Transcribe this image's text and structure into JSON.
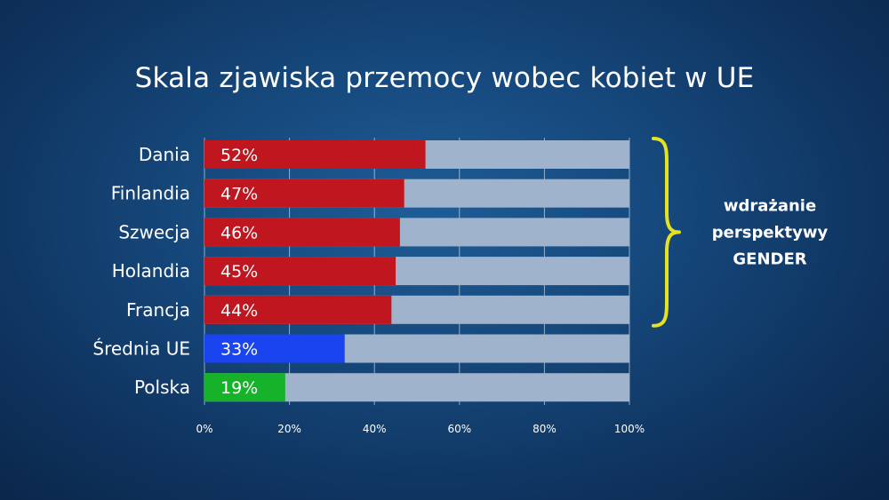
{
  "chart_data": {
    "type": "bar",
    "orientation": "horizontal",
    "title": "Skala zjawiska przemocy wobec kobiet w UE",
    "categories": [
      "Dania",
      "Finlandia",
      "Szwecja",
      "Holandia",
      "Francja",
      "Średnia UE",
      "Polska"
    ],
    "values": [
      52,
      47,
      46,
      45,
      44,
      33,
      19
    ],
    "value_labels": [
      "52%",
      "47%",
      "46%",
      "45%",
      "44%",
      "33%",
      "19%"
    ],
    "bar_colors": [
      "#c0161f",
      "#c0161f",
      "#c0161f",
      "#c0161f",
      "#c0161f",
      "#1a44ef",
      "#16b22a"
    ],
    "track_color": "#9fb4cc",
    "xlim": [
      0,
      100
    ],
    "xticks": [
      "0%",
      "20%",
      "40%",
      "60%",
      "80%",
      "100%"
    ],
    "grid": true,
    "annotation": {
      "brace_color": "#e8e21c",
      "lines": [
        "wdrażanie",
        "perspektywy",
        "GENDER"
      ]
    }
  }
}
